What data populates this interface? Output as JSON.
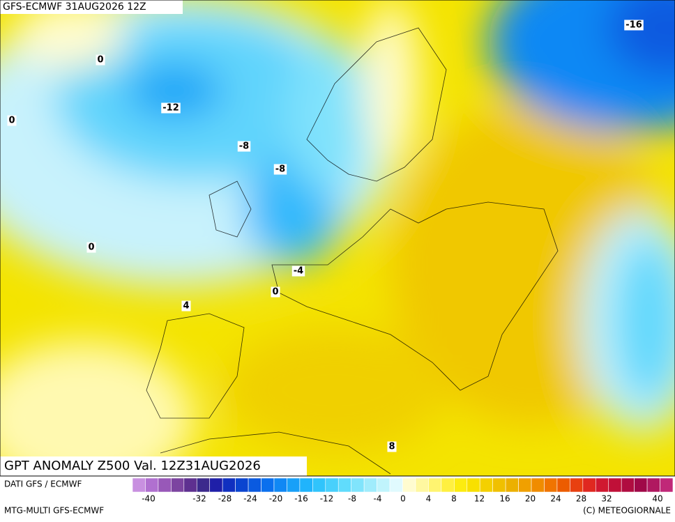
{
  "header": {
    "title": "GFS-ECMWF 31AUG2026 12Z"
  },
  "map": {
    "title": "GPT ANOMALY Z500 Val. 12Z31AUG2026",
    "contour_labels": [
      "-16",
      "0",
      "-12",
      "0",
      "-8",
      "-8",
      "0",
      "-4",
      "0",
      "4",
      "8"
    ]
  },
  "footer": {
    "source": "DATI GFS / ECMWF",
    "model": "MTG-MULTI GFS-ECMWF",
    "credit": "(C) METEOGIORNALE"
  },
  "colorbar": {
    "ticks": [
      -40,
      -32,
      -28,
      -24,
      -20,
      -16,
      -12,
      -8,
      -4,
      0,
      4,
      8,
      12,
      16,
      20,
      24,
      28,
      32,
      40
    ],
    "colors": [
      "#c890e0",
      "#b070d0",
      "#9858b8",
      "#7c44a0",
      "#5e3090",
      "#3c2a8c",
      "#1f1fa8",
      "#1030c0",
      "#0a44d0",
      "#0a5ae0",
      "#0a70ee",
      "#1088f4",
      "#18a0f8",
      "#20b4fc",
      "#30c4fc",
      "#48d0fc",
      "#60dcfc",
      "#80e4fc",
      "#a0ecfc",
      "#c0f4fc",
      "#e0fafe",
      "#fffcd0",
      "#fff8a0",
      "#fff470",
      "#fff040",
      "#fcec10",
      "#f8e000",
      "#f4d000",
      "#f0c000",
      "#ecb000",
      "#f0a000",
      "#f08c00",
      "#f07400",
      "#ec5c00",
      "#e84010",
      "#e02820",
      "#d01830",
      "#c01038",
      "#b00c40",
      "#a00848",
      "#b01860",
      "#c02878"
    ]
  }
}
